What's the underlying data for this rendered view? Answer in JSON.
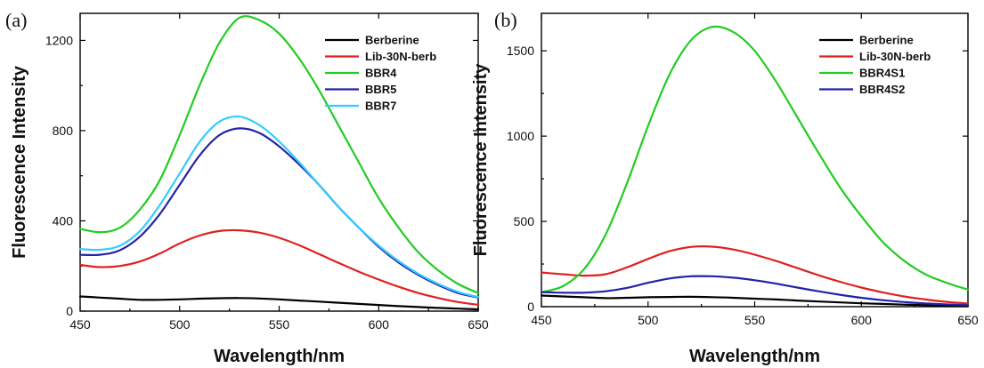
{
  "chart_data": [
    {
      "type": "line",
      "panel_label": "(a)",
      "xlabel": "Wavelength/nm",
      "ylabel": "Fluorescence Intensity",
      "xlim": [
        450,
        650
      ],
      "ylim": [
        0,
        1320
      ],
      "xticks": [
        450,
        500,
        550,
        600,
        650
      ],
      "yticks": [
        0,
        400,
        800,
        1200
      ],
      "legend_position": "top-right",
      "grid": false,
      "x": [
        450,
        460,
        470,
        480,
        490,
        500,
        510,
        520,
        530,
        540,
        550,
        560,
        570,
        580,
        590,
        600,
        610,
        620,
        630,
        640,
        650
      ],
      "series": [
        {
          "name": "Berberine",
          "color": "#000000",
          "values": [
            65,
            60,
            55,
            50,
            50,
            52,
            55,
            57,
            58,
            56,
            52,
            47,
            42,
            37,
            32,
            27,
            22,
            18,
            14,
            11,
            8
          ]
        },
        {
          "name": "Lib-30N-berb",
          "color": "#e02020",
          "values": [
            205,
            195,
            200,
            220,
            255,
            300,
            335,
            355,
            358,
            348,
            325,
            292,
            253,
            213,
            175,
            140,
            108,
            80,
            58,
            40,
            28
          ]
        },
        {
          "name": "BBR4",
          "color": "#22cc22",
          "values": [
            365,
            350,
            370,
            450,
            580,
            780,
            1000,
            1190,
            1300,
            1290,
            1230,
            1120,
            980,
            820,
            660,
            500,
            370,
            260,
            180,
            120,
            80
          ]
        },
        {
          "name": "BBR5",
          "color": "#2222aa",
          "values": [
            250,
            250,
            270,
            330,
            430,
            560,
            690,
            780,
            810,
            790,
            730,
            650,
            560,
            460,
            370,
            285,
            215,
            160,
            115,
            80,
            60
          ]
        },
        {
          "name": "BBR7",
          "color": "#33ccff",
          "values": [
            275,
            272,
            290,
            355,
            470,
            610,
            750,
            840,
            862,
            825,
            752,
            660,
            560,
            460,
            370,
            290,
            222,
            165,
            120,
            85,
            62
          ]
        }
      ]
    },
    {
      "type": "line",
      "panel_label": "(b)",
      "xlabel": "Wavelength/nm",
      "ylabel": "Fluorescence Intensity",
      "xlim": [
        450,
        650
      ],
      "ylim": [
        0,
        1720
      ],
      "xticks": [
        450,
        500,
        550,
        600,
        650
      ],
      "yticks": [
        0,
        500,
        1000,
        1500
      ],
      "legend_position": "top-right",
      "grid": false,
      "x": [
        450,
        460,
        470,
        480,
        490,
        500,
        510,
        520,
        530,
        540,
        550,
        560,
        570,
        580,
        590,
        600,
        610,
        620,
        630,
        640,
        650
      ],
      "series": [
        {
          "name": "Berberine",
          "color": "#000000",
          "values": [
            65,
            60,
            55,
            50,
            52,
            55,
            57,
            58,
            56,
            52,
            47,
            42,
            36,
            30,
            25,
            20,
            16,
            12,
            9,
            7,
            5
          ]
        },
        {
          "name": "Lib-30N-berb",
          "color": "#e02020",
          "values": [
            200,
            190,
            182,
            190,
            230,
            280,
            325,
            350,
            352,
            335,
            305,
            268,
            226,
            184,
            146,
            112,
            84,
            60,
            42,
            28,
            18
          ]
        },
        {
          "name": "BBR4S1",
          "color": "#22cc22",
          "values": [
            85,
            120,
            220,
            420,
            720,
            1060,
            1360,
            1560,
            1640,
            1610,
            1500,
            1320,
            1110,
            900,
            700,
            530,
            380,
            270,
            190,
            140,
            100
          ]
        },
        {
          "name": "BBR4S2",
          "color": "#2222aa",
          "values": [
            85,
            82,
            82,
            90,
            110,
            140,
            165,
            178,
            178,
            170,
            155,
            135,
            112,
            90,
            70,
            52,
            38,
            27,
            19,
            13,
            9
          ]
        }
      ]
    }
  ]
}
